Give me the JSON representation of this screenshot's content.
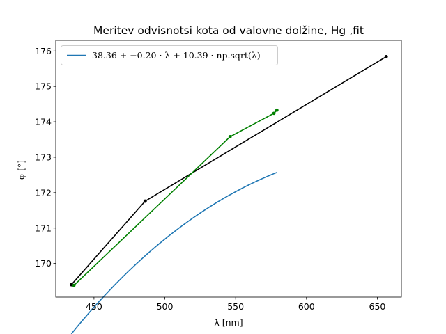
{
  "chart_data": {
    "type": "line",
    "title": "Meritev odvisnotsi kota od valovne dolžine, Hg ,fit",
    "xlabel": "λ [nm]",
    "ylabel": "φ [°]",
    "xlim": [
      423,
      667
    ],
    "ylim": [
      169.05,
      176.3
    ],
    "xticks": [
      450,
      500,
      550,
      600,
      650
    ],
    "yticks": [
      170,
      171,
      172,
      173,
      174,
      175,
      176
    ],
    "grid": false,
    "legend": {
      "placement": "top-left",
      "entries": [
        {
          "series": "fit",
          "label": "38.36 + −0.20 · λ + 10.39 · np.sqrt(λ)"
        }
      ]
    },
    "series": [
      {
        "id": "black",
        "color": "#000000",
        "marker": "circle",
        "x": [
          434.0,
          486.1,
          656.3
        ],
        "y": [
          169.4,
          171.76,
          175.84
        ]
      },
      {
        "id": "green",
        "color": "#008000",
        "marker": "circle",
        "x": [
          435.8,
          546.1,
          577.0,
          579.1
        ],
        "y": [
          169.38,
          173.58,
          174.24,
          174.33
        ]
      },
      {
        "id": "fit",
        "name": "38.36 + −0.20 · λ + 10.39 · np.sqrt(λ)",
        "color": "#1f77b4",
        "marker": "none",
        "function": {
          "a": 38.36,
          "b": -0.2,
          "c": 10.39
        },
        "x_range": [
          434.0,
          579.1
        ]
      }
    ]
  }
}
